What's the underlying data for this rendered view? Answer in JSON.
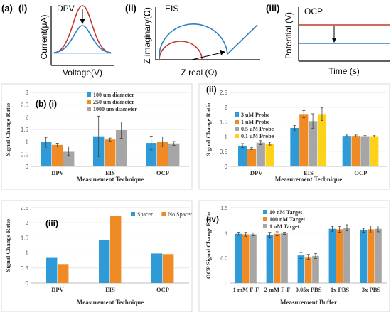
{
  "colors": {
    "blue": "#2e9bd6",
    "orange": "#f08a24",
    "gray": "#a6a6a6",
    "yellow": "#ffd21a",
    "red": "#c0392b",
    "line_blue": "#2f7fc1"
  },
  "panel_a": {
    "label_a": "(a)",
    "label_i": "(i)",
    "label_ii": "(ii)",
    "label_iii": "(iii)",
    "dpv": {
      "title": "DPV",
      "ylabel": "Current(μA)",
      "xlabel": "Voltage(V)"
    },
    "eis": {
      "title": "EIS",
      "ylabel": "Z imaginary(Ω)",
      "xlabel": "Z real (Ω)"
    },
    "ocp": {
      "title": "OCP",
      "ylabel": "Potential (V)",
      "xlabel": "Time (s)"
    }
  },
  "chart_data": [
    {
      "id": "b-i",
      "type": "bar",
      "panel_label": "(b) (i)",
      "categories": [
        "DPV",
        "EIS",
        "OCP"
      ],
      "xlabel": "Measurement Technique",
      "ylabel": "Signal Change Ratio",
      "ylim": [
        0,
        3
      ],
      "yticks": [
        "0",
        "0.5",
        "1",
        "1.5",
        "2",
        "2.5",
        "3"
      ],
      "legend_position": "top-center",
      "series": [
        {
          "name": "100 um diameter",
          "color": "#2e9bd6",
          "values": [
            0.98,
            1.22,
            0.95
          ],
          "errors": [
            0.2,
            0.82,
            0.28
          ]
        },
        {
          "name": "250 um diameter",
          "color": "#f08a24",
          "values": [
            0.87,
            1.09,
            1.0
          ],
          "errors": [
            0.07,
            0.06,
            0.2
          ]
        },
        {
          "name": "1000 um diameter",
          "color": "#a6a6a6",
          "values": [
            0.62,
            1.47,
            0.93
          ],
          "errors": [
            0.18,
            0.33,
            0.08
          ]
        }
      ]
    },
    {
      "id": "ii",
      "type": "bar",
      "panel_label": "(ii)",
      "categories": [
        "DPV",
        "EIS",
        "OCP"
      ],
      "xlabel": "Measurement Technique",
      "ylabel": "Signal Change Ratio",
      "ylim": [
        0,
        2.5
      ],
      "yticks": [
        "0",
        "0.5",
        "1",
        "1.5",
        "2",
        "2.5"
      ],
      "legend_position": "top-left",
      "series": [
        {
          "name": "3 uM Probe",
          "color": "#2e9bd6",
          "values": [
            0.7,
            1.3,
            1.03
          ],
          "errors": [
            0.07,
            0.08,
            0.03
          ]
        },
        {
          "name": "1 uM Probe",
          "color": "#f08a24",
          "values": [
            0.6,
            1.77,
            1.03
          ],
          "errors": [
            0.03,
            0.12,
            0.03
          ]
        },
        {
          "name": "0.5 uM Probe",
          "color": "#a6a6a6",
          "values": [
            0.8,
            1.53,
            1.02
          ],
          "errors": [
            0.07,
            0.25,
            0.02
          ]
        },
        {
          "name": "0.1 uM Probe",
          "color": "#ffd21a",
          "values": [
            0.77,
            1.77,
            1.02
          ],
          "errors": [
            0.05,
            0.22,
            0.02
          ]
        }
      ]
    },
    {
      "id": "iii",
      "type": "bar",
      "panel_label": "(iii)",
      "categories": [
        "DPV",
        "EIS",
        "OCP"
      ],
      "xlabel": "Measurement Technique",
      "ylabel": "Signal Change Ratio",
      "ylim": [
        0,
        2.5
      ],
      "yticks": [
        "0",
        "0.5",
        "1",
        "1.5",
        "2",
        "2.5"
      ],
      "legend_position": "top-right",
      "series": [
        {
          "name": "Spacer",
          "color": "#2e9bd6",
          "values": [
            0.86,
            1.42,
            0.98
          ]
        },
        {
          "name": "No Spacer",
          "color": "#f08a24",
          "values": [
            0.63,
            2.23,
            0.96
          ]
        }
      ]
    },
    {
      "id": "iv",
      "type": "bar",
      "panel_label": "(iv)",
      "categories": [
        "1 mM F-F",
        "2 mM F-F",
        "0.05x PBS",
        "1x PBS",
        "3x PBS"
      ],
      "xlabel": "Measurement Buffer",
      "ylabel": "OCP Signal Change Ratio",
      "ylim": [
        0,
        1.5
      ],
      "yticks": [
        "0",
        "0.5",
        "1",
        "1.5"
      ],
      "legend_position": "top-center",
      "series": [
        {
          "name": "10 nM Target",
          "color": "#2e9bd6",
          "values": [
            0.98,
            0.96,
            0.55,
            1.08,
            1.05
          ],
          "errors": [
            0.03,
            0.05,
            0.06,
            0.05,
            0.04
          ]
        },
        {
          "name": "100 nM Target",
          "color": "#f08a24",
          "values": [
            0.97,
            0.98,
            0.52,
            1.07,
            1.07
          ],
          "errors": [
            0.04,
            0.04,
            0.05,
            0.06,
            0.07
          ]
        },
        {
          "name": "1 uM Target",
          "color": "#a6a6a6",
          "values": [
            0.97,
            0.99,
            0.54,
            1.1,
            1.08
          ],
          "errors": [
            0.03,
            0.02,
            0.05,
            0.06,
            0.06
          ]
        }
      ]
    }
  ]
}
